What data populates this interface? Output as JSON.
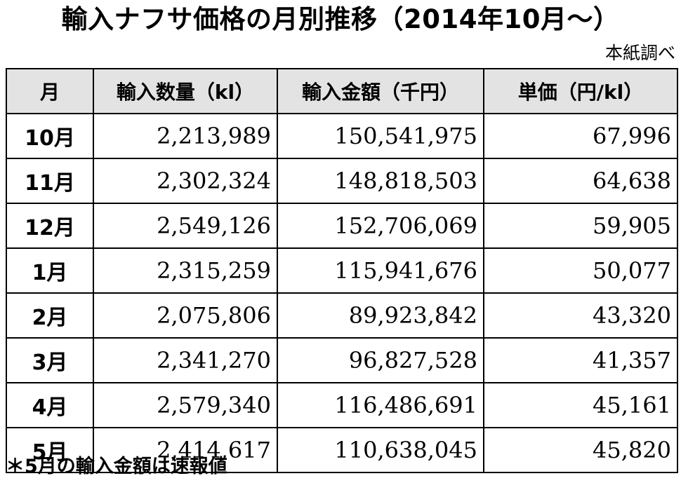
{
  "title": "輸入ナフサ価格の月別推移（2014年10月～）",
  "source": "本紙調べ",
  "table": {
    "headers": [
      "月",
      "輸入数量（kl）",
      "輸入金額（千円）",
      "単価（円/kl）"
    ],
    "rows": [
      {
        "month": "10月",
        "quantity": "2,213,989",
        "amount": "150,541,975",
        "unit_price": "67,996"
      },
      {
        "month": "11月",
        "quantity": "2,302,324",
        "amount": "148,818,503",
        "unit_price": "64,638"
      },
      {
        "month": "12月",
        "quantity": "2,549,126",
        "amount": "152,706,069",
        "unit_price": "59,905"
      },
      {
        "month": "1月",
        "quantity": "2,315,259",
        "amount": "115,941,676",
        "unit_price": "50,077"
      },
      {
        "month": "2月",
        "quantity": "2,075,806",
        "amount": "89,923,842",
        "unit_price": "43,320"
      },
      {
        "month": "3月",
        "quantity": "2,341,270",
        "amount": "96,827,528",
        "unit_price": "41,357"
      },
      {
        "month": "4月",
        "quantity": "2,579,340",
        "amount": "116,486,691",
        "unit_price": "45,161"
      },
      {
        "month": "5月",
        "quantity": "2,414,617",
        "amount": "110,638,045",
        "unit_price": "45,820"
      }
    ]
  },
  "note": "＊5月の輸入金額は速報値"
}
